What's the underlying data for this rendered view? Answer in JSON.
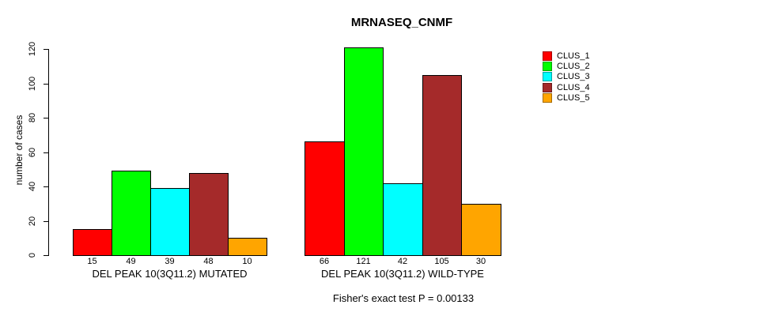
{
  "chart_data": {
    "type": "bar",
    "title": "MRNASEQ_CNMF",
    "ylabel": "number of cases",
    "xlabel": "",
    "ylim": [
      0,
      120
    ],
    "yticks": [
      0,
      20,
      40,
      60,
      80,
      100,
      120
    ],
    "grid": false,
    "legend_position": "right",
    "bar_value_labels": true,
    "categories": [
      "DEL PEAK 10(3Q11.2) MUTATED",
      "DEL PEAK 10(3Q11.2) WILD-TYPE"
    ],
    "series": [
      {
        "name": "CLUS_1",
        "color": "#FF0000",
        "values": [
          15,
          66
        ]
      },
      {
        "name": "CLUS_2",
        "color": "#00FF00",
        "values": [
          49,
          121
        ]
      },
      {
        "name": "CLUS_3",
        "color": "#00FFFF",
        "values": [
          39,
          42
        ]
      },
      {
        "name": "CLUS_4",
        "color": "#A52A2A",
        "values": [
          48,
          105
        ]
      },
      {
        "name": "CLUS_5",
        "color": "#FFA500",
        "values": [
          10,
          30
        ]
      }
    ],
    "footnote": "Fisher's exact test P = 0.00133"
  },
  "colors": {
    "axis": "#000000",
    "background": "#FFFFFF",
    "bar_border": "#000000"
  }
}
